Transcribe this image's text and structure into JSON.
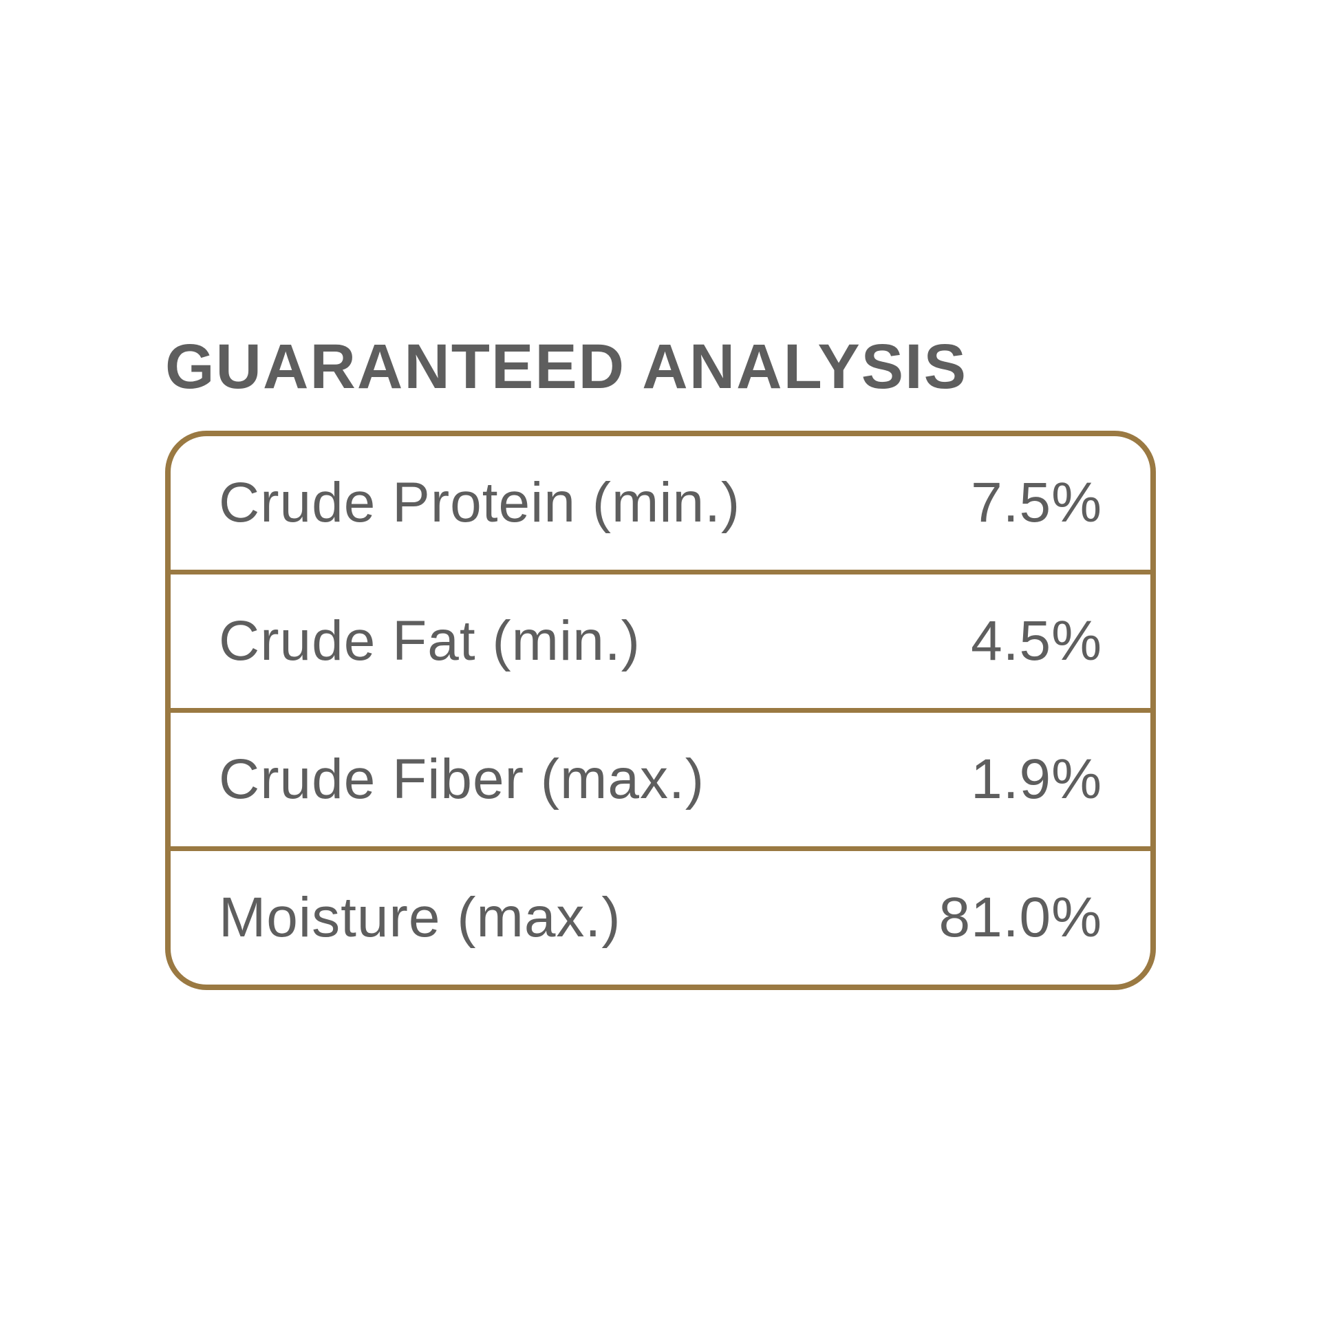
{
  "title": "GUARANTEED ANALYSIS",
  "table": {
    "type": "table",
    "border_color": "#9a7942",
    "border_width": 8,
    "border_radius": 60,
    "divider_color": "#9a7942",
    "divider_width": 7,
    "background_color": "#ffffff",
    "text_color": "#5e5e5e",
    "title_color": "#5e5e5e",
    "title_fontsize": 92,
    "cell_fontsize": 82,
    "row_padding_vertical": 50,
    "row_padding_horizontal": 70,
    "rows": [
      {
        "label": "Crude Protein (min.)",
        "value": "7.5%"
      },
      {
        "label": "Crude Fat (min.)",
        "value": "4.5%"
      },
      {
        "label": "Crude Fiber (max.)",
        "value": "1.9%"
      },
      {
        "label": "Moisture (max.)",
        "value": "81.0%"
      }
    ]
  }
}
